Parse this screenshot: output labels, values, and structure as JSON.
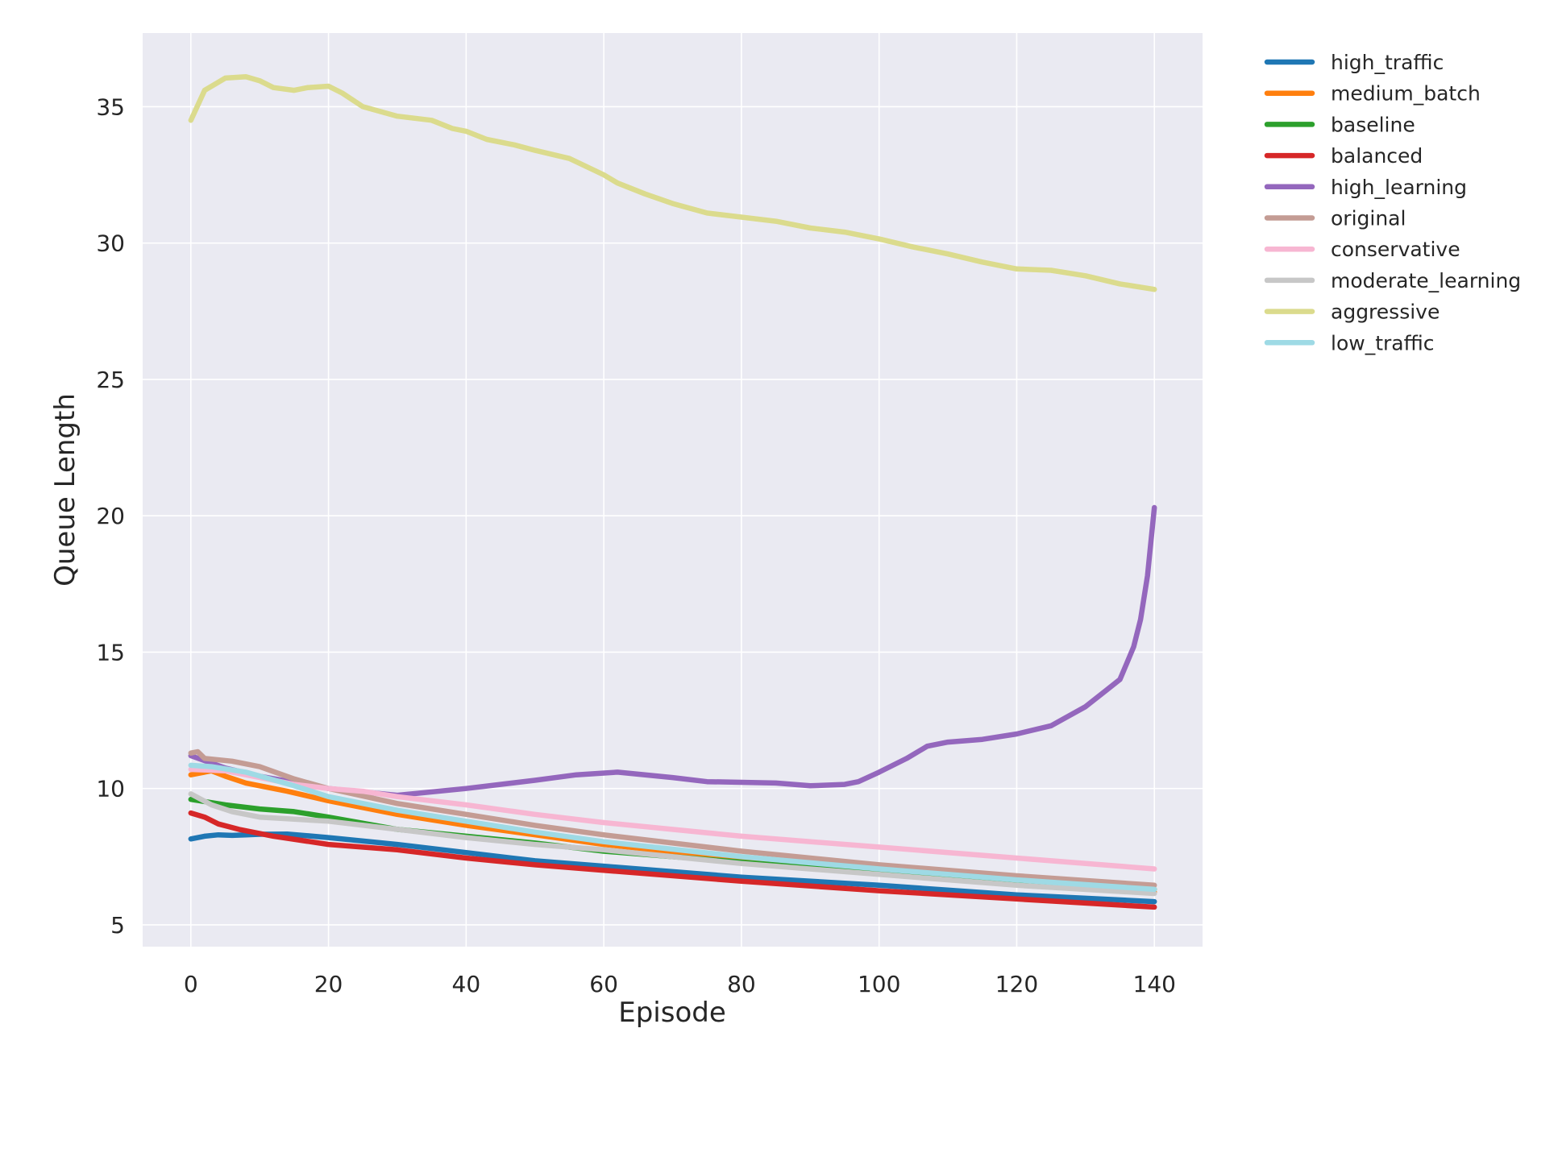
{
  "chart_data": {
    "type": "line",
    "title": "",
    "xlabel": "Episode",
    "ylabel": "Queue Length",
    "xlim": [
      -7,
      147
    ],
    "ylim": [
      4.2,
      37.7
    ],
    "xticks": [
      0,
      20,
      40,
      60,
      80,
      100,
      120,
      140
    ],
    "yticks": [
      5,
      10,
      15,
      20,
      25,
      30,
      35
    ],
    "grid": true,
    "legend_position": "outside-top-right",
    "series": [
      {
        "name": "high_traffic",
        "color": "#1f77b4",
        "points": [
          [
            0,
            8.15
          ],
          [
            2,
            8.25
          ],
          [
            4,
            8.3
          ],
          [
            6,
            8.28
          ],
          [
            8,
            8.3
          ],
          [
            10,
            8.32
          ],
          [
            14,
            8.33
          ],
          [
            20,
            8.2
          ],
          [
            30,
            7.95
          ],
          [
            40,
            7.65
          ],
          [
            50,
            7.35
          ],
          [
            60,
            7.15
          ],
          [
            80,
            6.75
          ],
          [
            100,
            6.45
          ],
          [
            120,
            6.1
          ],
          [
            140,
            5.85
          ]
        ]
      },
      {
        "name": "medium_batch",
        "color": "#ff7f0e",
        "points": [
          [
            0,
            10.5
          ],
          [
            3,
            10.65
          ],
          [
            5,
            10.45
          ],
          [
            8,
            10.2
          ],
          [
            14,
            9.9
          ],
          [
            20,
            9.55
          ],
          [
            30,
            9.05
          ],
          [
            40,
            8.65
          ],
          [
            50,
            8.3
          ],
          [
            60,
            7.95
          ],
          [
            80,
            7.4
          ],
          [
            100,
            6.95
          ],
          [
            120,
            6.55
          ],
          [
            140,
            6.2
          ]
        ]
      },
      {
        "name": "baseline",
        "color": "#2ca02c",
        "points": [
          [
            0,
            9.6
          ],
          [
            5,
            9.4
          ],
          [
            10,
            9.25
          ],
          [
            15,
            9.15
          ],
          [
            20,
            8.95
          ],
          [
            30,
            8.5
          ],
          [
            40,
            8.25
          ],
          [
            50,
            8.0
          ],
          [
            60,
            7.7
          ],
          [
            80,
            7.3
          ],
          [
            100,
            6.9
          ],
          [
            120,
            6.55
          ],
          [
            140,
            6.3
          ]
        ]
      },
      {
        "name": "balanced",
        "color": "#d62728",
        "points": [
          [
            0,
            9.1
          ],
          [
            2,
            8.95
          ],
          [
            4,
            8.7
          ],
          [
            7,
            8.5
          ],
          [
            12,
            8.25
          ],
          [
            20,
            7.95
          ],
          [
            30,
            7.75
          ],
          [
            40,
            7.45
          ],
          [
            50,
            7.2
          ],
          [
            60,
            7.0
          ],
          [
            80,
            6.6
          ],
          [
            100,
            6.25
          ],
          [
            120,
            5.95
          ],
          [
            140,
            5.65
          ]
        ]
      },
      {
        "name": "high_learning",
        "color": "#9467bd",
        "points": [
          [
            0,
            11.2
          ],
          [
            5,
            10.75
          ],
          [
            10,
            10.45
          ],
          [
            20,
            10.0
          ],
          [
            30,
            9.75
          ],
          [
            40,
            10.0
          ],
          [
            50,
            10.3
          ],
          [
            56,
            10.5
          ],
          [
            62,
            10.6
          ],
          [
            70,
            10.4
          ],
          [
            75,
            10.25
          ],
          [
            85,
            10.2
          ],
          [
            90,
            10.1
          ],
          [
            95,
            10.15
          ],
          [
            97,
            10.25
          ],
          [
            100,
            10.6
          ],
          [
            104,
            11.1
          ],
          [
            107,
            11.55
          ],
          [
            110,
            11.7
          ],
          [
            115,
            11.8
          ],
          [
            120,
            12.0
          ],
          [
            125,
            12.3
          ],
          [
            130,
            13.0
          ],
          [
            133,
            13.6
          ],
          [
            135,
            14.0
          ],
          [
            136,
            14.6
          ],
          [
            137,
            15.2
          ],
          [
            138,
            16.2
          ],
          [
            139,
            17.8
          ],
          [
            140,
            20.3
          ]
        ]
      },
      {
        "name": "original",
        "color": "#c49c94",
        "points": [
          [
            0,
            11.3
          ],
          [
            1,
            11.35
          ],
          [
            2,
            11.1
          ],
          [
            6,
            11.0
          ],
          [
            10,
            10.8
          ],
          [
            15,
            10.35
          ],
          [
            20,
            10.0
          ],
          [
            30,
            9.45
          ],
          [
            40,
            9.05
          ],
          [
            50,
            8.65
          ],
          [
            60,
            8.3
          ],
          [
            80,
            7.7
          ],
          [
            100,
            7.2
          ],
          [
            120,
            6.8
          ],
          [
            140,
            6.45
          ]
        ]
      },
      {
        "name": "conservative",
        "color": "#f7b6d2",
        "points": [
          [
            0,
            10.7
          ],
          [
            5,
            10.65
          ],
          [
            10,
            10.4
          ],
          [
            15,
            10.15
          ],
          [
            20,
            10.0
          ],
          [
            25,
            9.9
          ],
          [
            30,
            9.7
          ],
          [
            40,
            9.4
          ],
          [
            50,
            9.05
          ],
          [
            60,
            8.75
          ],
          [
            80,
            8.25
          ],
          [
            100,
            7.85
          ],
          [
            120,
            7.45
          ],
          [
            140,
            7.05
          ]
        ]
      },
      {
        "name": "moderate_learning",
        "color": "#c7c7c7",
        "points": [
          [
            0,
            9.8
          ],
          [
            3,
            9.4
          ],
          [
            6,
            9.15
          ],
          [
            10,
            8.95
          ],
          [
            20,
            8.8
          ],
          [
            30,
            8.5
          ],
          [
            40,
            8.2
          ],
          [
            50,
            7.95
          ],
          [
            60,
            7.75
          ],
          [
            80,
            7.25
          ],
          [
            100,
            6.85
          ],
          [
            120,
            6.45
          ],
          [
            140,
            6.15
          ]
        ]
      },
      {
        "name": "aggressive",
        "color": "#dbdb8d",
        "points": [
          [
            0,
            34.5
          ],
          [
            2,
            35.6
          ],
          [
            5,
            36.05
          ],
          [
            8,
            36.1
          ],
          [
            10,
            35.95
          ],
          [
            12,
            35.7
          ],
          [
            15,
            35.6
          ],
          [
            17,
            35.7
          ],
          [
            20,
            35.75
          ],
          [
            22,
            35.5
          ],
          [
            25,
            35.0
          ],
          [
            30,
            34.65
          ],
          [
            35,
            34.5
          ],
          [
            38,
            34.2
          ],
          [
            40,
            34.1
          ],
          [
            43,
            33.8
          ],
          [
            47,
            33.6
          ],
          [
            50,
            33.4
          ],
          [
            55,
            33.1
          ],
          [
            60,
            32.5
          ],
          [
            62,
            32.2
          ],
          [
            66,
            31.8
          ],
          [
            70,
            31.45
          ],
          [
            75,
            31.1
          ],
          [
            80,
            30.95
          ],
          [
            85,
            30.8
          ],
          [
            90,
            30.55
          ],
          [
            95,
            30.4
          ],
          [
            100,
            30.15
          ],
          [
            105,
            29.85
          ],
          [
            110,
            29.6
          ],
          [
            115,
            29.3
          ],
          [
            120,
            29.05
          ],
          [
            125,
            29.0
          ],
          [
            130,
            28.8
          ],
          [
            135,
            28.5
          ],
          [
            140,
            28.3
          ]
        ]
      },
      {
        "name": "low_traffic",
        "color": "#9edae5",
        "points": [
          [
            0,
            10.85
          ],
          [
            3,
            10.8
          ],
          [
            8,
            10.6
          ],
          [
            15,
            10.1
          ],
          [
            20,
            9.7
          ],
          [
            30,
            9.2
          ],
          [
            40,
            8.8
          ],
          [
            50,
            8.4
          ],
          [
            60,
            8.05
          ],
          [
            80,
            7.5
          ],
          [
            100,
            7.05
          ],
          [
            120,
            6.65
          ],
          [
            140,
            6.3
          ]
        ]
      }
    ]
  }
}
